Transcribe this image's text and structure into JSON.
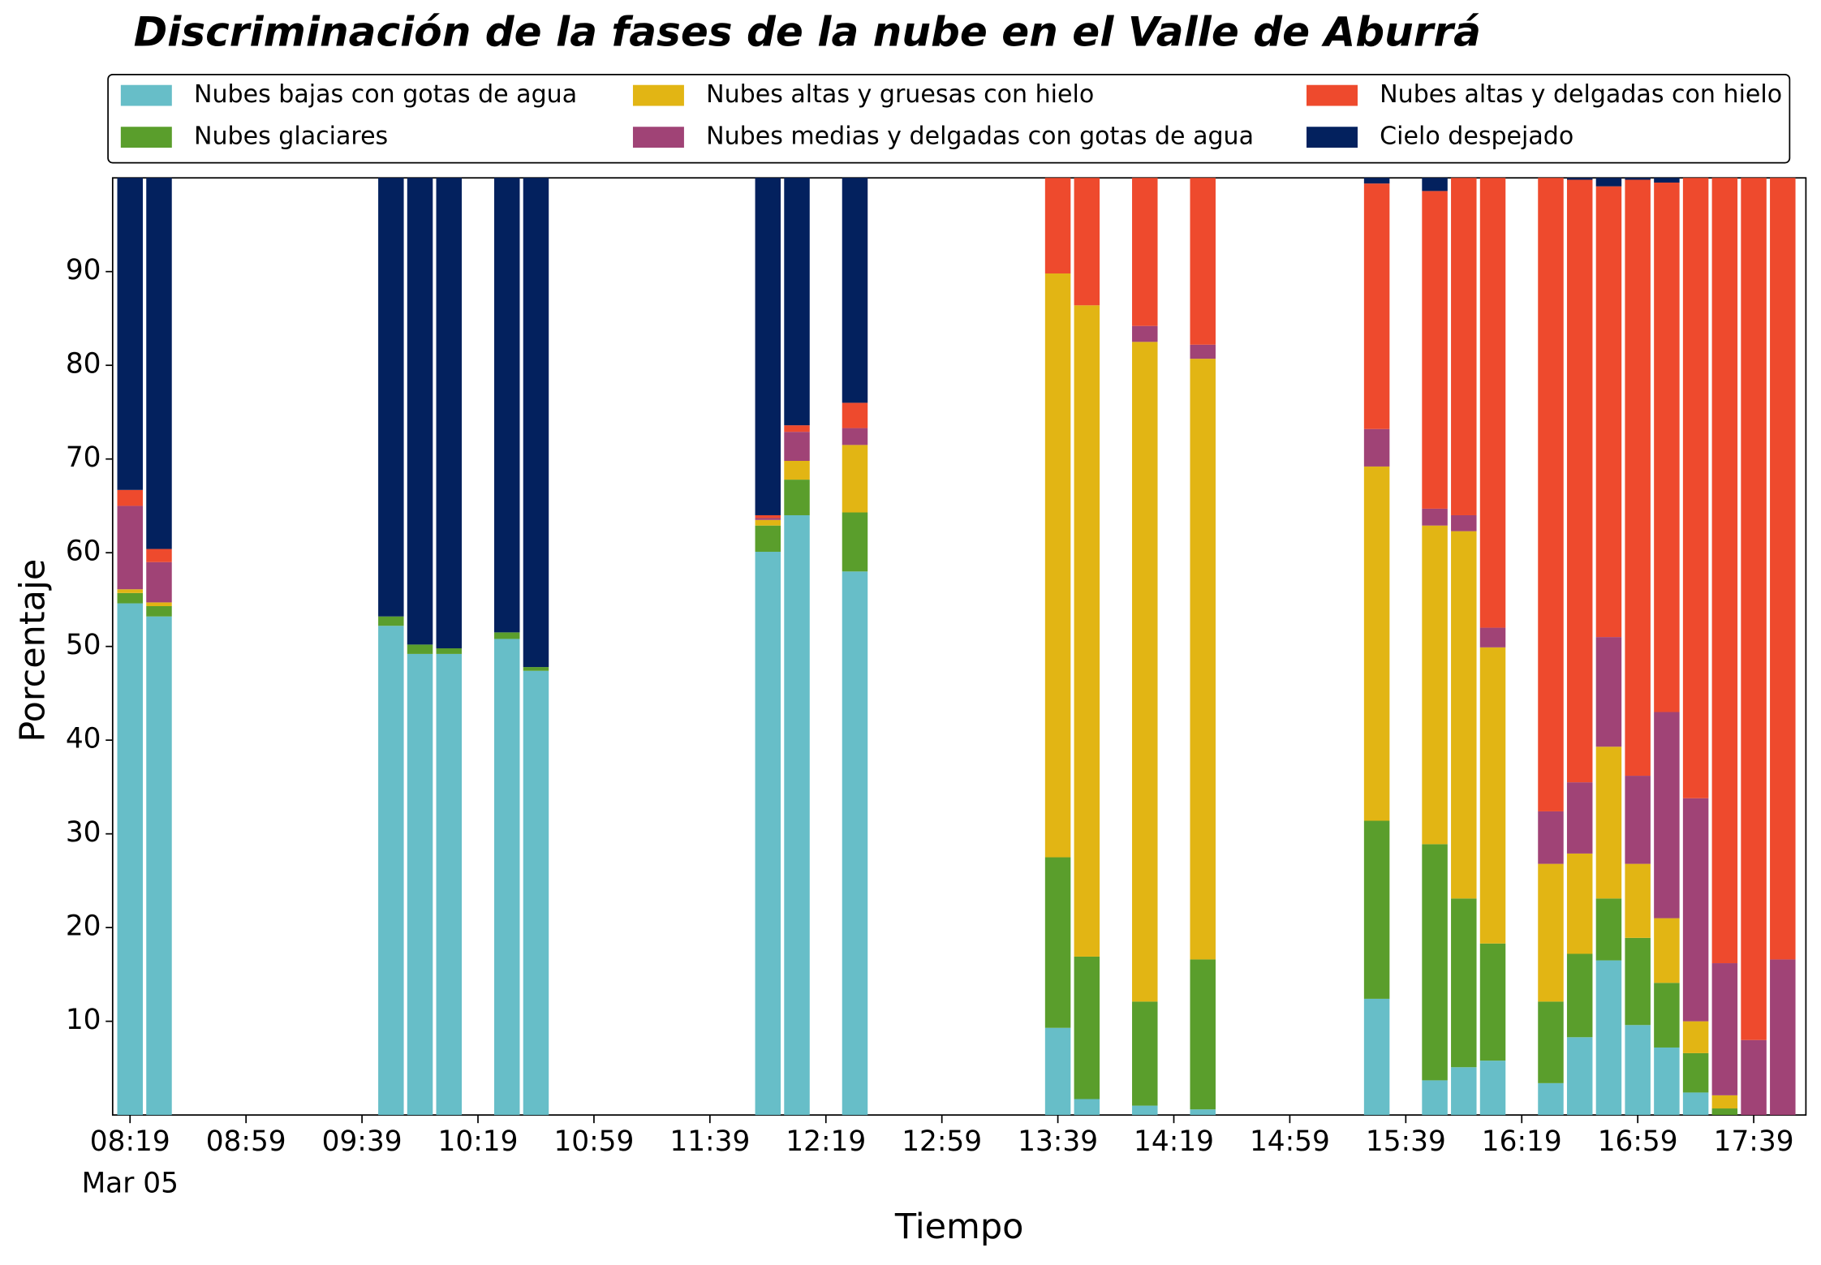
{
  "chart_data": {
    "type": "stacked_bar",
    "title": "Discriminación de la fases de la nube en el Valle de Aburrá",
    "xlabel": "Tiempo",
    "ylabel": "Porcentaje",
    "x_date": "Mar 05",
    "x": [
      "08:19",
      "08:29",
      "09:49",
      "09:59",
      "10:09",
      "10:29",
      "10:39",
      "11:59",
      "12:09",
      "12:29",
      "13:39",
      "13:49",
      "14:09",
      "14:29",
      "15:29",
      "15:49",
      "15:59",
      "16:09",
      "16:29",
      "16:39",
      "16:49",
      "16:59",
      "17:09",
      "17:19",
      "17:29",
      "17:39",
      "17:49"
    ],
    "xlim": [
      "08:13",
      "17:57"
    ],
    "xticks": [
      "08:19",
      "08:59",
      "09:39",
      "10:19",
      "10:59",
      "11:39",
      "12:19",
      "12:59",
      "13:39",
      "14:19",
      "14:59",
      "15:39",
      "16:19",
      "16:59",
      "17:39"
    ],
    "ylim": [
      0,
      100
    ],
    "yticks": [
      10,
      20,
      30,
      40,
      50,
      60,
      70,
      80,
      90
    ],
    "legend_position": "top",
    "series": [
      {
        "name": "Nubes bajas con gotas de agua",
        "color": "#67bec8",
        "values": [
          54.6,
          53.2,
          52.2,
          49.2,
          49.2,
          50.8,
          47.4,
          60.1,
          64.0,
          58.0,
          9.3,
          1.7,
          1.0,
          0.6,
          12.4,
          3.7,
          5.1,
          5.8,
          3.4,
          8.3,
          16.5,
          9.6,
          7.2,
          2.4,
          0,
          0,
          0
        ]
      },
      {
        "name": "Nubes glaciares",
        "color": "#5a9e2c",
        "values": [
          1.1,
          1.1,
          1.0,
          1.0,
          0.6,
          0.7,
          0.4,
          2.8,
          3.8,
          6.3,
          18.2,
          15.2,
          11.1,
          16.0,
          19.0,
          25.2,
          18.0,
          12.5,
          8.7,
          8.9,
          6.6,
          9.3,
          6.9,
          4.2,
          0.7,
          0,
          0
        ]
      },
      {
        "name": "Nubes altas y gruesas con hielo",
        "color": "#e2b514",
        "values": [
          0.4,
          0.4,
          0,
          0,
          0,
          0,
          0,
          0.6,
          2.0,
          7.2,
          62.3,
          69.5,
          70.4,
          64.1,
          37.8,
          34.0,
          39.2,
          31.6,
          14.7,
          10.7,
          16.2,
          7.9,
          6.9,
          3.4,
          1.4,
          0,
          0
        ]
      },
      {
        "name": "Nubes medias y delgadas con gotas de agua",
        "color": "#a04376",
        "values": [
          8.9,
          4.3,
          0,
          0,
          0,
          0,
          0,
          0.2,
          3.1,
          1.8,
          0,
          0,
          1.7,
          1.5,
          4.0,
          1.8,
          1.7,
          2.1,
          5.6,
          7.6,
          11.7,
          9.4,
          22.0,
          23.8,
          14.1,
          8.0,
          16.6
        ]
      },
      {
        "name": "Nubes altas y delgadas con hielo",
        "color": "#ee4a2d",
        "values": [
          1.7,
          1.4,
          0,
          0,
          0,
          0,
          0,
          0.3,
          0.7,
          2.7,
          10.2,
          13.6,
          15.8,
          17.8,
          26.2,
          33.9,
          36.0,
          48.0,
          67.6,
          64.3,
          48.1,
          63.6,
          56.5,
          66.2,
          83.8,
          92.0,
          83.4
        ]
      },
      {
        "name": "Cielo despejado",
        "color": "#03215e",
        "values": [
          33.3,
          39.6,
          46.8,
          49.8,
          50.2,
          48.5,
          52.2,
          36.0,
          26.4,
          24.0,
          0,
          0,
          0,
          0,
          0.6,
          1.4,
          0,
          0,
          0,
          0.2,
          0.9,
          0.2,
          0.5,
          0,
          0,
          0,
          0
        ]
      }
    ]
  }
}
